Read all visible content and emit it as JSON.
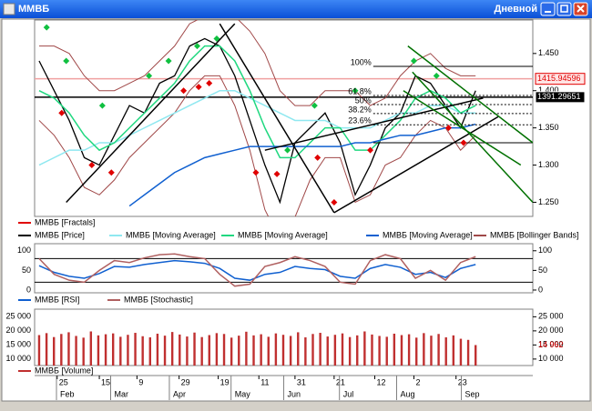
{
  "window": {
    "title": "ММВБ",
    "timeframe": "Дневной"
  },
  "x_axis": {
    "xlim": [
      -0.3,
      32.8
    ],
    "x": [
      0,
      1,
      2,
      3,
      4,
      5,
      6,
      7,
      8,
      9,
      10,
      11,
      12,
      13,
      14,
      15,
      16,
      17,
      18,
      19,
      20,
      21,
      22,
      23,
      24,
      25,
      26,
      27,
      28,
      29
    ],
    "xticks": [
      {
        "value": 1.2,
        "label": "25"
      },
      {
        "value": 4.0,
        "label": "15"
      },
      {
        "value": 6.5,
        "label": "9"
      },
      {
        "value": 9.3,
        "label": "29"
      },
      {
        "value": 11.9,
        "label": "19"
      },
      {
        "value": 14.6,
        "label": "11"
      },
      {
        "value": 17.0,
        "label": "31"
      },
      {
        "value": 19.6,
        "label": "21"
      },
      {
        "value": 22.3,
        "label": "12"
      },
      {
        "value": 24.9,
        "label": "2"
      },
      {
        "value": 27.7,
        "label": "23"
      }
    ],
    "month_ticks": [
      {
        "value": 2.0,
        "label": "Feb"
      },
      {
        "value": 5.6,
        "label": "Mar"
      },
      {
        "value": 9.5,
        "label": "Apr"
      },
      {
        "value": 13.6,
        "label": "May"
      },
      {
        "value": 17.1,
        "label": "Jun"
      },
      {
        "value": 20.8,
        "label": "Jul"
      },
      {
        "value": 24.6,
        "label": "Aug"
      },
      {
        "value": 28.9,
        "label": "Sep"
      }
    ]
  },
  "chart_data": [
    {
      "type": "line",
      "ylim": [
        1.231,
        1.495
      ],
      "yticks": [
        {
          "value": 1.25,
          "label": "1.250"
        },
        {
          "value": 1.3,
          "label": "1.300"
        },
        {
          "value": 1.35,
          "label": "1.350"
        },
        {
          "value": 1.4,
          "label": "1.400"
        },
        {
          "value": 1.45,
          "label": "1.450"
        }
      ],
      "series": [
        {
          "name": "ММВБ [Price]",
          "color": "#000000",
          "values": [
            1.44,
            1.4,
            1.36,
            1.31,
            1.3,
            1.34,
            1.38,
            1.37,
            1.41,
            1.42,
            1.46,
            1.47,
            1.46,
            1.42,
            1.36,
            1.3,
            1.25,
            1.33,
            1.35,
            1.37,
            1.33,
            1.26,
            1.3,
            1.35,
            1.37,
            1.42,
            1.41,
            1.38,
            1.35,
            1.4
          ]
        },
        {
          "name": "ММВБ [Moving Average]",
          "color": "#8fe8f0",
          "values": [
            1.3,
            1.31,
            1.32,
            1.32,
            1.33,
            1.33,
            1.34,
            1.35,
            1.36,
            1.37,
            1.38,
            1.39,
            1.4,
            1.4,
            1.39,
            1.38,
            1.37,
            1.36,
            1.36,
            1.36,
            1.35,
            1.35,
            1.35,
            1.36,
            1.37,
            1.37,
            1.38,
            1.38,
            1.37,
            1.37
          ]
        },
        {
          "name": "ММВБ [Moving Average]",
          "color": "#20d880",
          "values": [
            1.4,
            1.39,
            1.37,
            1.34,
            1.32,
            1.33,
            1.35,
            1.37,
            1.39,
            1.41,
            1.44,
            1.46,
            1.46,
            1.44,
            1.4,
            1.35,
            1.31,
            1.31,
            1.33,
            1.35,
            1.35,
            1.32,
            1.32,
            1.34,
            1.36,
            1.39,
            1.4,
            1.39,
            1.37,
            1.38
          ]
        },
        {
          "name": "ММВБ [Moving Average]",
          "color": "#1060d0",
          "values": [
            null,
            null,
            null,
            null,
            null,
            null,
            1.245,
            1.26,
            1.275,
            1.29,
            1.3,
            1.31,
            1.315,
            1.32,
            1.325,
            1.325,
            1.325,
            1.325,
            1.325,
            1.325,
            1.325,
            1.33,
            1.33,
            1.335,
            1.34,
            1.34,
            1.345,
            1.35,
            1.35,
            1.355
          ]
        },
        {
          "name": "ММВБ [Bollinger Bands]",
          "color": "#a04848",
          "upper": [
            1.46,
            1.46,
            1.45,
            1.42,
            1.4,
            1.4,
            1.41,
            1.42,
            1.44,
            1.46,
            1.49,
            1.5,
            1.5,
            1.5,
            1.48,
            1.45,
            1.4,
            1.38,
            1.38,
            1.4,
            1.4,
            1.4,
            1.38,
            1.39,
            1.42,
            1.44,
            1.45,
            1.43,
            1.42,
            1.42
          ],
          "lower": [
            1.36,
            1.34,
            1.31,
            1.27,
            1.26,
            1.28,
            1.31,
            1.33,
            1.35,
            1.37,
            1.4,
            1.42,
            1.42,
            1.38,
            1.32,
            1.24,
            1.2,
            1.23,
            1.28,
            1.31,
            1.31,
            1.25,
            1.26,
            1.3,
            1.31,
            1.34,
            1.36,
            1.35,
            1.32,
            1.34
          ]
        }
      ],
      "fractals": {
        "name": "ММВБ [Fractals]",
        "color": "#e00000",
        "up_color": "#10c040",
        "down": {
          "x": [
            1.5,
            3.5,
            4.8,
            9.6,
            10.6,
            11.3,
            14.4,
            15.8,
            18.5,
            19.6,
            22.0,
            27.2,
            28.2
          ],
          "values": [
            1.37,
            1.3,
            1.29,
            1.4,
            1.405,
            1.41,
            1.29,
            1.288,
            1.31,
            1.25,
            1.32,
            1.35,
            1.33
          ]
        },
        "up": {
          "x": [
            0.5,
            1.8,
            4.2,
            7.3,
            8.6,
            10.5,
            11.8,
            16.5,
            18.3,
            21.0,
            24.9,
            26.4
          ],
          "values": [
            1.485,
            1.44,
            1.38,
            1.42,
            1.44,
            1.46,
            1.47,
            1.32,
            1.38,
            1.4,
            1.44,
            1.42
          ]
        }
      },
      "trend_lines": [
        {
          "color": "#000000",
          "x": [
            1.8,
            13.0
          ],
          "values": [
            1.25,
            1.49
          ]
        },
        {
          "color": "#000000",
          "x": [
            12.0,
            19.6
          ],
          "values": [
            1.49,
            1.236
          ]
        },
        {
          "color": "#000000",
          "x": [
            19.6,
            30.5
          ],
          "values": [
            1.236,
            1.365
          ]
        },
        {
          "color": "#000000",
          "x": [
            15.0,
            29.5
          ],
          "values": [
            1.32,
            1.39
          ]
        },
        {
          "color": "#007000",
          "x": [
            24.5,
            32.8
          ],
          "values": [
            1.46,
            1.33
          ]
        },
        {
          "color": "#007000",
          "x": [
            24.8,
            32.8
          ],
          "values": [
            1.425,
            1.25
          ]
        },
        {
          "color": "#007000",
          "x": [
            24.2,
            32.0
          ],
          "values": [
            1.4,
            1.3
          ]
        }
      ],
      "fibonacci": {
        "x": [
          22.2,
          32.8
        ],
        "base": 1.33,
        "levels": [
          {
            "value": 1.4327,
            "label": "100%"
          },
          {
            "value": 1.3935,
            "label": "61.8%"
          },
          {
            "value": 1.3813,
            "label": "50%"
          },
          {
            "value": 1.3692,
            "label": "38.2%"
          },
          {
            "value": 1.3542,
            "label": "23.6%"
          }
        ]
      },
      "price_tags": [
        {
          "value": 1.41594596,
          "label": "1415.94596",
          "color": "#e00000",
          "background": "#ffe4e4",
          "line_color": "#f0a0a0"
        },
        {
          "value": 1.39129651,
          "label": "1391.29651",
          "color": "#ffffff",
          "background": "#000000",
          "line_color": "#000000"
        }
      ]
    },
    {
      "type": "line",
      "ylim": [
        -7,
        118
      ],
      "yticks": [
        0,
        50,
        100
      ],
      "levels": [
        20,
        80
      ],
      "series": [
        {
          "name": "ММВБ [RSI]",
          "color": "#1060d0",
          "values": [
            62,
            45,
            35,
            30,
            42,
            60,
            58,
            65,
            70,
            75,
            72,
            68,
            55,
            30,
            25,
            40,
            45,
            60,
            55,
            52,
            35,
            30,
            55,
            65,
            58,
            40,
            45,
            32,
            55,
            65
          ]
        },
        {
          "name": "ММВБ [Stochastic]",
          "color": "#b06060",
          "values": [
            80,
            40,
            25,
            20,
            50,
            75,
            70,
            82,
            90,
            92,
            85,
            80,
            40,
            10,
            15,
            60,
            70,
            85,
            75,
            60,
            20,
            15,
            75,
            90,
            80,
            30,
            50,
            25,
            70,
            85
          ]
        }
      ]
    },
    {
      "type": "bar",
      "ylim": [
        7700,
        27700
      ],
      "yticks": [
        {
          "value": 10000,
          "label": "10 000"
        },
        {
          "value": 15000,
          "label": "15 000"
        },
        {
          "value": 20000,
          "label": "20 000"
        },
        {
          "value": 25000,
          "label": "25 000"
        }
      ],
      "series": [
        {
          "name": "ММВБ [Volume]",
          "color": "#c03030",
          "values": [
            18500,
            19200,
            17800,
            18900,
            19500,
            18200,
            17600,
            19800,
            18400,
            18800,
            19100,
            17900,
            18600,
            19300,
            18100,
            17700,
            19000,
            18300,
            19600,
            18700,
            18000,
            19400,
            17800,
            18500,
            19200,
            18900,
            17600,
            18300,
            19700,
            18400,
            18800,
            17900,
            19100,
            18600,
            18200,
            19500,
            17700,
            18900,
            19300,
            18000,
            18600,
            19100,
            17800,
            18400,
            19800,
            18700,
            18200,
            17900,
            19000,
            18500,
            18800,
            17600,
            19200,
            18300,
            18900,
            17700,
            18400,
            17200,
            16800,
            14962
          ]
        }
      ],
      "current": {
        "value": 14962,
        "label": "14 962",
        "color": "#e00000"
      }
    }
  ]
}
